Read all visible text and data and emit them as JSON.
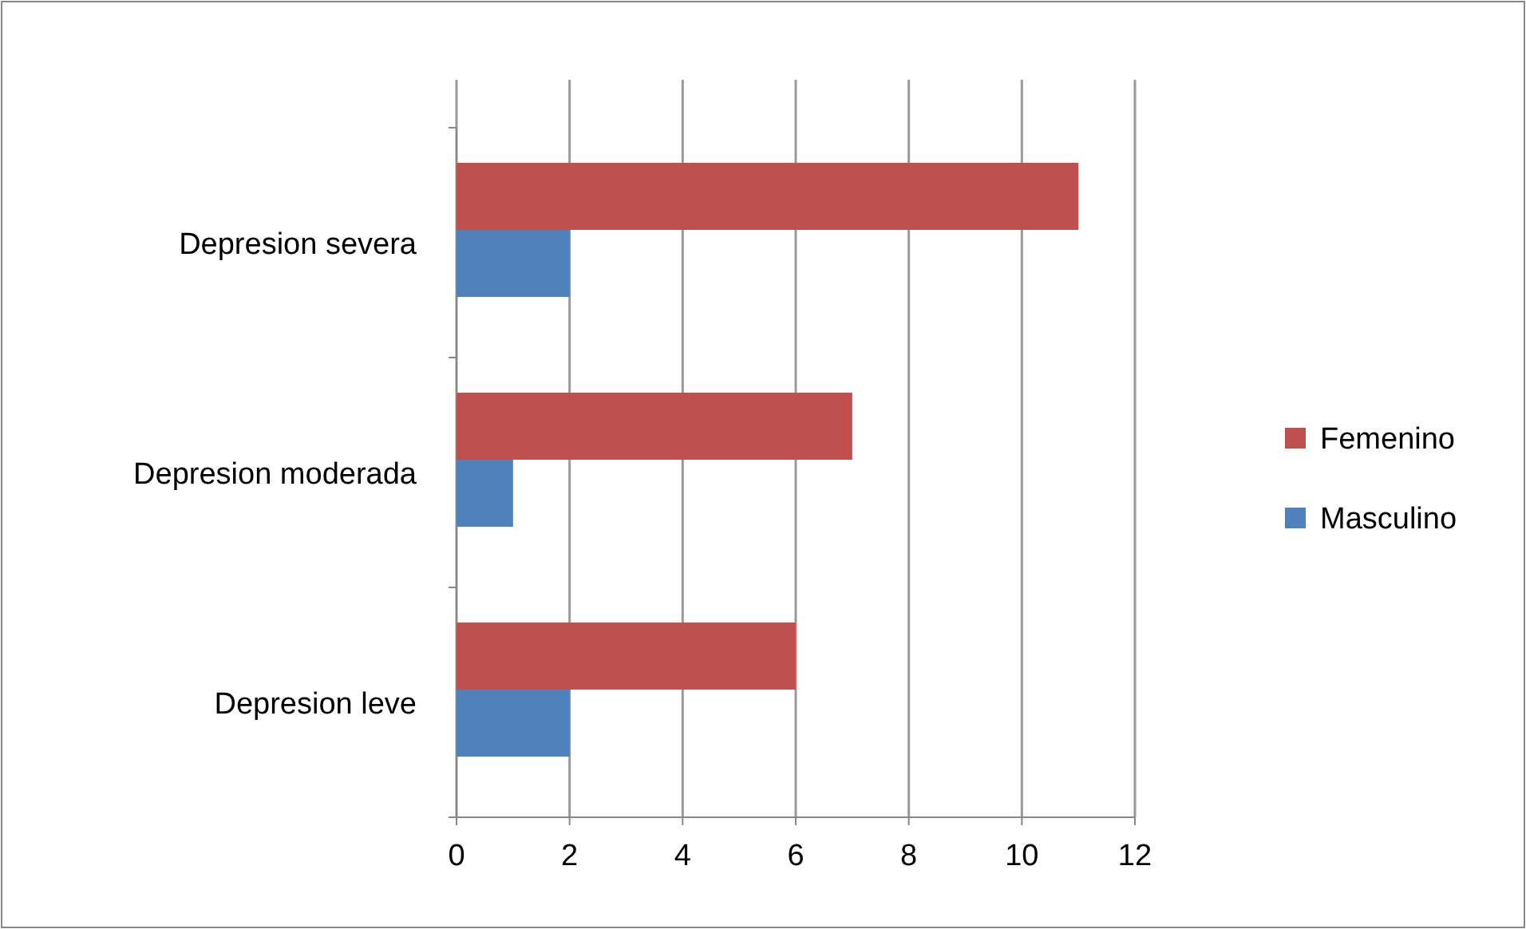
{
  "chart_data": {
    "type": "bar",
    "orientation": "horizontal",
    "categories": [
      "Depresion severa",
      "Depresion moderada",
      "Depresion leve"
    ],
    "series": [
      {
        "name": "Femenino",
        "color": "#c0504d",
        "values": [
          11,
          7,
          6
        ]
      },
      {
        "name": "Masculino",
        "color": "#4f81bd",
        "values": [
          2,
          1,
          2
        ]
      }
    ],
    "xlim": [
      0,
      12
    ],
    "xticks": [
      0,
      2,
      4,
      6,
      8,
      10,
      12
    ],
    "grid": "x",
    "legend": "right"
  }
}
